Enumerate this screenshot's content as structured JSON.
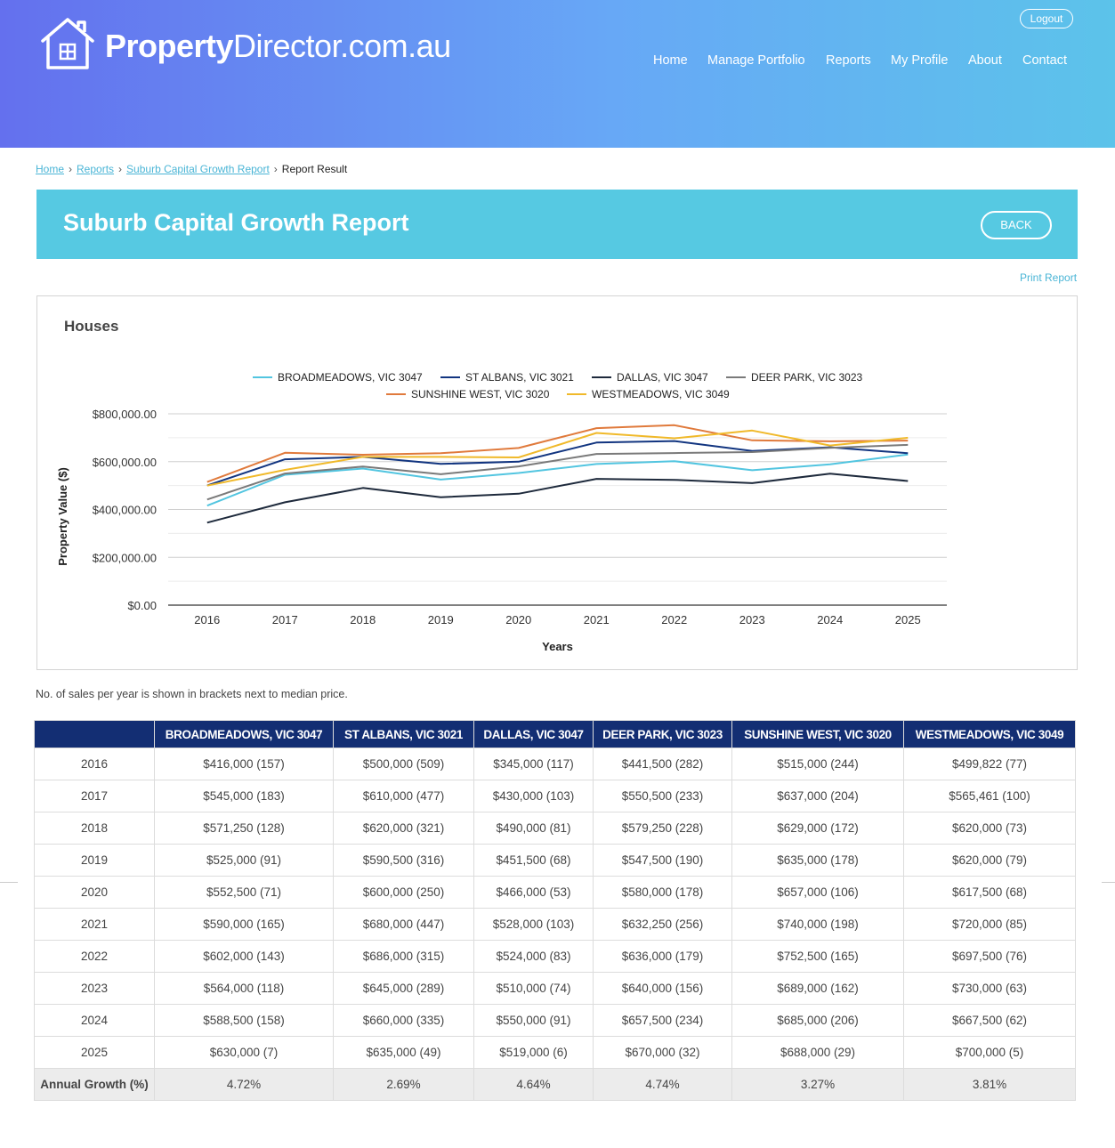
{
  "brand": {
    "bold": "Property",
    "rest": "Director.com.au"
  },
  "auth": {
    "logout_label": "Logout"
  },
  "nav": {
    "items": [
      "Home",
      "Manage Portfolio",
      "Reports",
      "My Profile",
      "About",
      "Contact"
    ]
  },
  "breadcrumb": {
    "items": [
      "Home",
      "Reports",
      "Suburb Capital Growth Report"
    ],
    "current": "Report Result"
  },
  "banner": {
    "title": "Suburb Capital Growth Report",
    "back_label": "BACK"
  },
  "print_label": "Print Report",
  "chart_title": "Houses",
  "chart_data": {
    "type": "line",
    "title": "",
    "xlabel": "Years",
    "ylabel": "Property Value ($)",
    "x": [
      "2016",
      "2017",
      "2018",
      "2019",
      "2020",
      "2021",
      "2022",
      "2023",
      "2024",
      "2025"
    ],
    "ylim": [
      0,
      800000
    ],
    "y_ticks": [
      "$0.00",
      "$200,000.00",
      "$400,000.00",
      "$600,000.00",
      "$800,000.00"
    ],
    "y_tick_values": [
      0,
      200000,
      400000,
      600000,
      800000
    ],
    "grid": true,
    "legend_position": "top",
    "series": [
      {
        "name": "BROADMEADOWS, VIC 3047",
        "color": "#52c5e0",
        "values": [
          416000,
          545000,
          571250,
          525000,
          552500,
          590000,
          602000,
          564000,
          588500,
          630000
        ]
      },
      {
        "name": "ST ALBANS, VIC 3021",
        "color": "#123580",
        "values": [
          500000,
          610000,
          620000,
          590500,
          600000,
          680000,
          686000,
          645000,
          660000,
          635000
        ]
      },
      {
        "name": "DALLAS, VIC 3047",
        "color": "#1e2a3c",
        "values": [
          345000,
          430000,
          490000,
          451500,
          466000,
          528000,
          524000,
          510000,
          550000,
          519000
        ]
      },
      {
        "name": "DEER PARK, VIC 3023",
        "color": "#7a7a7a",
        "values": [
          441500,
          550500,
          579250,
          547500,
          580000,
          632250,
          636000,
          640000,
          657500,
          670000
        ]
      },
      {
        "name": "SUNSHINE WEST, VIC 3020",
        "color": "#e07a3c",
        "values": [
          515000,
          637000,
          629000,
          635000,
          657000,
          740000,
          752500,
          689000,
          685000,
          688000
        ]
      },
      {
        "name": "WESTMEADOWS, VIC 3049",
        "color": "#f0b92a",
        "values": [
          499822,
          565461,
          620000,
          620000,
          617500,
          720000,
          697500,
          730000,
          667500,
          700000
        ]
      }
    ]
  },
  "note": "No. of sales per year is shown in brackets next to median price.",
  "table": {
    "columns": [
      "",
      "BROADMEADOWS, VIC 3047",
      "ST ALBANS, VIC 3021",
      "DALLAS, VIC 3047",
      "DEER PARK, VIC 3023",
      "SUNSHINE WEST, VIC 3020",
      "WESTMEADOWS, VIC 3049"
    ],
    "rows": [
      [
        "2016",
        "$416,000 (157)",
        "$500,000 (509)",
        "$345,000 (117)",
        "$441,500 (282)",
        "$515,000 (244)",
        "$499,822 (77)"
      ],
      [
        "2017",
        "$545,000 (183)",
        "$610,000 (477)",
        "$430,000 (103)",
        "$550,500 (233)",
        "$637,000 (204)",
        "$565,461 (100)"
      ],
      [
        "2018",
        "$571,250 (128)",
        "$620,000 (321)",
        "$490,000 (81)",
        "$579,250 (228)",
        "$629,000 (172)",
        "$620,000 (73)"
      ],
      [
        "2019",
        "$525,000 (91)",
        "$590,500 (316)",
        "$451,500 (68)",
        "$547,500 (190)",
        "$635,000 (178)",
        "$620,000 (79)"
      ],
      [
        "2020",
        "$552,500 (71)",
        "$600,000 (250)",
        "$466,000 (53)",
        "$580,000 (178)",
        "$657,000 (106)",
        "$617,500 (68)"
      ],
      [
        "2021",
        "$590,000 (165)",
        "$680,000 (447)",
        "$528,000 (103)",
        "$632,250 (256)",
        "$740,000 (198)",
        "$720,000 (85)"
      ],
      [
        "2022",
        "$602,000 (143)",
        "$686,000 (315)",
        "$524,000 (83)",
        "$636,000 (179)",
        "$752,500 (165)",
        "$697,500 (76)"
      ],
      [
        "2023",
        "$564,000 (118)",
        "$645,000 (289)",
        "$510,000 (74)",
        "$640,000 (156)",
        "$689,000 (162)",
        "$730,000 (63)"
      ],
      [
        "2024",
        "$588,500 (158)",
        "$660,000 (335)",
        "$550,000 (91)",
        "$657,500 (234)",
        "$685,000 (206)",
        "$667,500 (62)"
      ],
      [
        "2025",
        "$630,000 (7)",
        "$635,000 (49)",
        "$519,000 (6)",
        "$670,000 (32)",
        "$688,000 (29)",
        "$700,000 (5)"
      ]
    ],
    "growth": [
      "Annual Growth (%)",
      "4.72%",
      "2.69%",
      "4.64%",
      "4.74%",
      "3.27%",
      "3.81%"
    ]
  }
}
